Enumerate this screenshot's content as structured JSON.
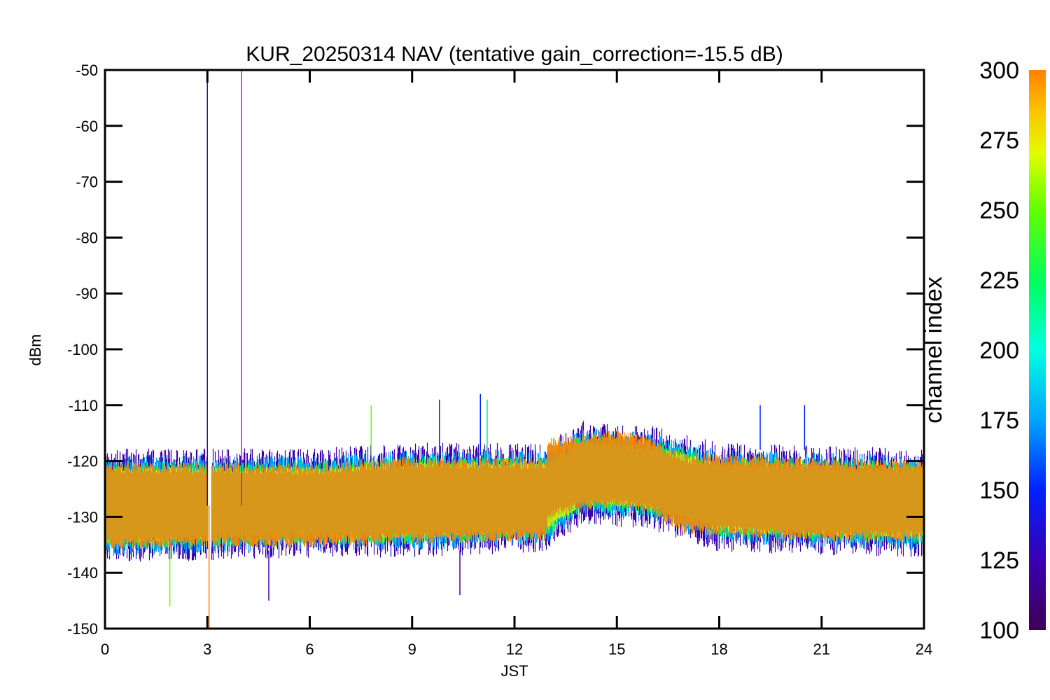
{
  "chart_data": {
    "type": "line",
    "title": "KUR_20250314 NAV (tentative gain_correction=-15.5 dB)",
    "xlabel": "JST",
    "ylabel": "dBm",
    "xlim": [
      0,
      24
    ],
    "ylim": [
      -150,
      -50
    ],
    "x_ticks": [
      "0",
      "3",
      "6",
      "9",
      "12",
      "15",
      "18",
      "21",
      "24"
    ],
    "y_ticks": [
      "-50",
      "-60",
      "-70",
      "-80",
      "-90",
      "-100",
      "-110",
      "-120",
      "-130",
      "-140",
      "-150"
    ],
    "grid": false,
    "colorbar": {
      "label": "channel index",
      "range": [
        100,
        300
      ],
      "ticks": [
        "300",
        "275",
        "250",
        "225",
        "200",
        "175",
        "150",
        "125",
        "100"
      ],
      "colormap": [
        "#3d0055",
        "#3a00b0",
        "#0020ff",
        "#00a0ff",
        "#00ffe0",
        "#00ff60",
        "#60ff00",
        "#e0ff00",
        "#ffc000",
        "#ff8000"
      ]
    },
    "series": [
      {
        "mean_level_dBm": [
          {
            "x": 0,
            "y": -128
          },
          {
            "x": 3,
            "y": -128
          },
          {
            "x": 6,
            "y": -128
          },
          {
            "x": 9,
            "y": -127
          },
          {
            "x": 12,
            "y": -127
          },
          {
            "x": 12.9,
            "y": -127
          },
          {
            "x": 13,
            "y": -123
          },
          {
            "x": 14,
            "y": -122
          },
          {
            "x": 15,
            "y": -121.5
          },
          {
            "x": 16,
            "y": -122.5
          },
          {
            "x": 17,
            "y": -126
          },
          {
            "x": 18,
            "y": -126
          },
          {
            "x": 21,
            "y": -127
          },
          {
            "x": 24,
            "y": -127
          }
        ],
        "upper_envelope_dBm": [
          {
            "x": 0,
            "y": -119
          },
          {
            "x": 6,
            "y": -119
          },
          {
            "x": 9,
            "y": -118
          },
          {
            "x": 12.9,
            "y": -118
          },
          {
            "x": 14,
            "y": -114
          },
          {
            "x": 16,
            "y": -115
          },
          {
            "x": 18,
            "y": -118
          },
          {
            "x": 24,
            "y": -119
          }
        ],
        "lower_envelope_dBm": [
          {
            "x": 0,
            "y": -137
          },
          {
            "x": 6,
            "y": -136
          },
          {
            "x": 9,
            "y": -136
          },
          {
            "x": 12.9,
            "y": -135
          },
          {
            "x": 14,
            "y": -130
          },
          {
            "x": 16,
            "y": -131
          },
          {
            "x": 18,
            "y": -135
          },
          {
            "x": 24,
            "y": -136
          }
        ],
        "spikes": [
          {
            "x": 3.0,
            "y_top": -50,
            "y_bottom": -128,
            "color": "#4b0082"
          },
          {
            "x": 4.0,
            "y_top": -50,
            "y_bottom": -128,
            "color": "#8a2be2"
          },
          {
            "x": 3.05,
            "y_top": -128,
            "y_bottom": -150,
            "color": "#ff8000"
          },
          {
            "x": 1.9,
            "y_top": -136,
            "y_bottom": -146,
            "color": "#60ff00"
          },
          {
            "x": 4.8,
            "y_top": -136,
            "y_bottom": -145,
            "color": "#3a00b0"
          },
          {
            "x": 10.4,
            "y_top": -136,
            "y_bottom": -144,
            "color": "#3a00b0"
          },
          {
            "x": 11.0,
            "y_top": -108,
            "y_bottom": -119,
            "color": "#0020ff"
          },
          {
            "x": 11.2,
            "y_top": -109,
            "y_bottom": -119,
            "color": "#00ff60"
          },
          {
            "x": 9.8,
            "y_top": -109,
            "y_bottom": -119,
            "color": "#0020ff"
          },
          {
            "x": 7.8,
            "y_top": -110,
            "y_bottom": -119,
            "color": "#60ff00"
          },
          {
            "x": 19.2,
            "y_top": -110,
            "y_bottom": -118,
            "color": "#0020ff"
          },
          {
            "x": 20.5,
            "y_top": -110,
            "y_bottom": -118,
            "color": "#0020ff"
          }
        ]
      }
    ]
  }
}
